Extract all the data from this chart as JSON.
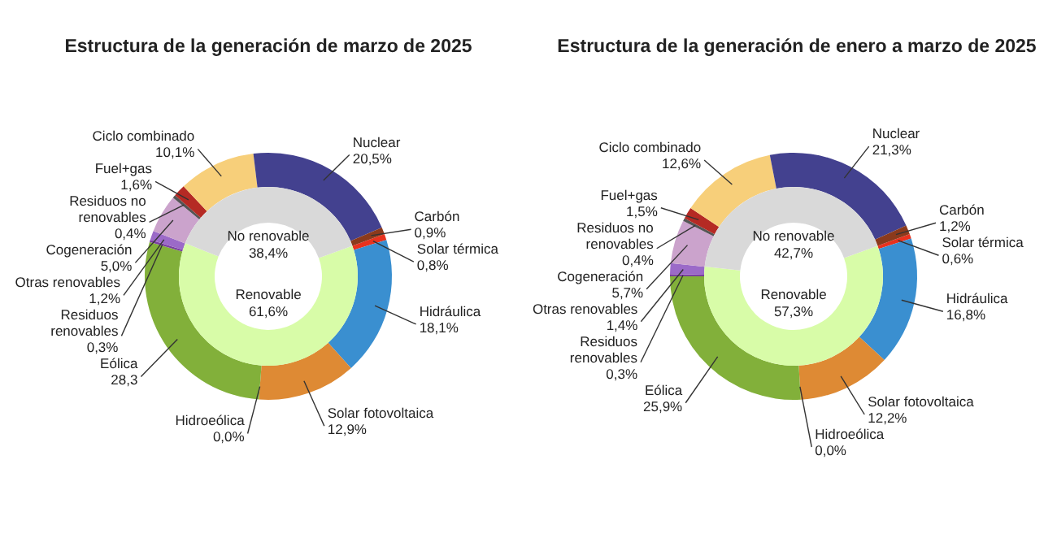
{
  "chart_data": [
    {
      "type": "donut",
      "title": "Estructura de la generación de marzo de 2025",
      "categories": [
        "Solar térmica",
        "Hidráulica",
        "Solar fotovoltaica",
        "Hidroeólica",
        "Eólica",
        "Residuos renovables",
        "Otras renovables",
        "Cogeneración",
        "Residuos no renovables",
        "Fuel+gas",
        "Ciclo combinado",
        "Nuclear",
        "Carbón"
      ],
      "values": [
        0.8,
        18.1,
        12.9,
        0.0,
        28.3,
        0.3,
        1.2,
        5.0,
        0.4,
        1.6,
        10.1,
        20.5,
        0.9
      ],
      "colors": [
        "#e8321e",
        "#3a8fd0",
        "#de8a34",
        "#4d7a2a",
        "#82b03a",
        "#7a3fa0",
        "#9b6ac8",
        "#cba3cc",
        "#555555",
        "#b52a24",
        "#f7cf7a",
        "#43418f",
        "#8b3a1c"
      ],
      "value_labels": [
        "0,8%",
        "18,1%",
        "12,9%",
        "0,0%",
        "28,3",
        "0,3%",
        "1,2%",
        "5,0%",
        "0,4%",
        "1,6%",
        "10,1%",
        "20,5%",
        "0,9%"
      ]
    },
    {
      "type": "donut",
      "categories": [
        "Renovable",
        "No renovable"
      ],
      "values": [
        61.6,
        38.4
      ],
      "colors": [
        "#d8fca8",
        "#d9d9d9"
      ],
      "value_labels": [
        "61,6%",
        "38,4%"
      ]
    },
    {
      "type": "donut",
      "title": "Estructura de la generación de enero a marzo de 2025",
      "categories": [
        "Solar térmica",
        "Hidráulica",
        "Solar fotovoltaica",
        "Hidroeólica",
        "Eólica",
        "Residuos renovables",
        "Otras renovables",
        "Cogeneración",
        "Residuos no renovables",
        "Fuel+gas",
        "Ciclo combinado",
        "Nuclear",
        "Carbón"
      ],
      "values": [
        0.6,
        16.8,
        12.2,
        0.0,
        25.9,
        0.3,
        1.4,
        5.7,
        0.4,
        1.5,
        12.6,
        21.3,
        1.2
      ],
      "colors": [
        "#e8321e",
        "#3a8fd0",
        "#de8a34",
        "#4d7a2a",
        "#82b03a",
        "#7a3fa0",
        "#9b6ac8",
        "#cba3cc",
        "#555555",
        "#b52a24",
        "#f7cf7a",
        "#43418f",
        "#8b3a1c"
      ],
      "value_labels": [
        "0,6%",
        "16,8%",
        "12,2%",
        "0,0%",
        "25,9%",
        "0,3%",
        "1,4%",
        "5,7%",
        "0,4%",
        "1,5%",
        "12,6%",
        "21,3%",
        "1,2%"
      ]
    },
    {
      "type": "donut",
      "categories": [
        "Renovable",
        "No renovable"
      ],
      "values": [
        57.3,
        42.7
      ],
      "colors": [
        "#d8fca8",
        "#d9d9d9"
      ],
      "value_labels": [
        "57,3%",
        "42,7%"
      ]
    }
  ]
}
